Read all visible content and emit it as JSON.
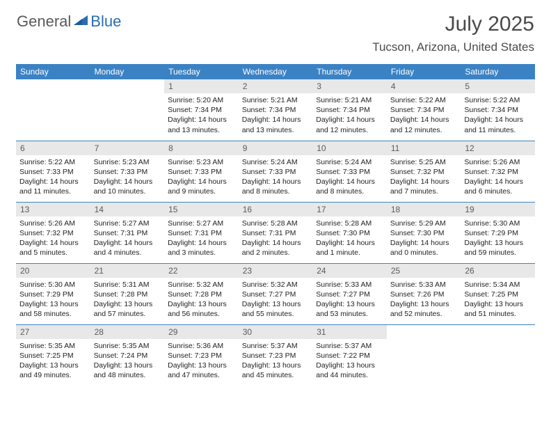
{
  "logo": {
    "general": "General",
    "blue": "Blue"
  },
  "title": "July 2025",
  "location": "Tucson, Arizona, United States",
  "theme": {
    "header_bg": "#3b82c4",
    "header_text": "#ffffff",
    "daynum_bg": "#e8e8e8",
    "daynum_text": "#5a5a5a",
    "border_color": "#3b82c4",
    "body_text": "#222222",
    "title_color": "#4a4a4a"
  },
  "day_headers": [
    "Sunday",
    "Monday",
    "Tuesday",
    "Wednesday",
    "Thursday",
    "Friday",
    "Saturday"
  ],
  "weeks": [
    [
      null,
      null,
      {
        "n": "1",
        "sr": "5:20 AM",
        "ss": "7:34 PM",
        "dl": "14 hours and 13 minutes."
      },
      {
        "n": "2",
        "sr": "5:21 AM",
        "ss": "7:34 PM",
        "dl": "14 hours and 13 minutes."
      },
      {
        "n": "3",
        "sr": "5:21 AM",
        "ss": "7:34 PM",
        "dl": "14 hours and 12 minutes."
      },
      {
        "n": "4",
        "sr": "5:22 AM",
        "ss": "7:34 PM",
        "dl": "14 hours and 12 minutes."
      },
      {
        "n": "5",
        "sr": "5:22 AM",
        "ss": "7:34 PM",
        "dl": "14 hours and 11 minutes."
      }
    ],
    [
      {
        "n": "6",
        "sr": "5:22 AM",
        "ss": "7:33 PM",
        "dl": "14 hours and 11 minutes."
      },
      {
        "n": "7",
        "sr": "5:23 AM",
        "ss": "7:33 PM",
        "dl": "14 hours and 10 minutes."
      },
      {
        "n": "8",
        "sr": "5:23 AM",
        "ss": "7:33 PM",
        "dl": "14 hours and 9 minutes."
      },
      {
        "n": "9",
        "sr": "5:24 AM",
        "ss": "7:33 PM",
        "dl": "14 hours and 8 minutes."
      },
      {
        "n": "10",
        "sr": "5:24 AM",
        "ss": "7:33 PM",
        "dl": "14 hours and 8 minutes."
      },
      {
        "n": "11",
        "sr": "5:25 AM",
        "ss": "7:32 PM",
        "dl": "14 hours and 7 minutes."
      },
      {
        "n": "12",
        "sr": "5:26 AM",
        "ss": "7:32 PM",
        "dl": "14 hours and 6 minutes."
      }
    ],
    [
      {
        "n": "13",
        "sr": "5:26 AM",
        "ss": "7:32 PM",
        "dl": "14 hours and 5 minutes."
      },
      {
        "n": "14",
        "sr": "5:27 AM",
        "ss": "7:31 PM",
        "dl": "14 hours and 4 minutes."
      },
      {
        "n": "15",
        "sr": "5:27 AM",
        "ss": "7:31 PM",
        "dl": "14 hours and 3 minutes."
      },
      {
        "n": "16",
        "sr": "5:28 AM",
        "ss": "7:31 PM",
        "dl": "14 hours and 2 minutes."
      },
      {
        "n": "17",
        "sr": "5:28 AM",
        "ss": "7:30 PM",
        "dl": "14 hours and 1 minute."
      },
      {
        "n": "18",
        "sr": "5:29 AM",
        "ss": "7:30 PM",
        "dl": "14 hours and 0 minutes."
      },
      {
        "n": "19",
        "sr": "5:30 AM",
        "ss": "7:29 PM",
        "dl": "13 hours and 59 minutes."
      }
    ],
    [
      {
        "n": "20",
        "sr": "5:30 AM",
        "ss": "7:29 PM",
        "dl": "13 hours and 58 minutes."
      },
      {
        "n": "21",
        "sr": "5:31 AM",
        "ss": "7:28 PM",
        "dl": "13 hours and 57 minutes."
      },
      {
        "n": "22",
        "sr": "5:32 AM",
        "ss": "7:28 PM",
        "dl": "13 hours and 56 minutes."
      },
      {
        "n": "23",
        "sr": "5:32 AM",
        "ss": "7:27 PM",
        "dl": "13 hours and 55 minutes."
      },
      {
        "n": "24",
        "sr": "5:33 AM",
        "ss": "7:27 PM",
        "dl": "13 hours and 53 minutes."
      },
      {
        "n": "25",
        "sr": "5:33 AM",
        "ss": "7:26 PM",
        "dl": "13 hours and 52 minutes."
      },
      {
        "n": "26",
        "sr": "5:34 AM",
        "ss": "7:25 PM",
        "dl": "13 hours and 51 minutes."
      }
    ],
    [
      {
        "n": "27",
        "sr": "5:35 AM",
        "ss": "7:25 PM",
        "dl": "13 hours and 49 minutes."
      },
      {
        "n": "28",
        "sr": "5:35 AM",
        "ss": "7:24 PM",
        "dl": "13 hours and 48 minutes."
      },
      {
        "n": "29",
        "sr": "5:36 AM",
        "ss": "7:23 PM",
        "dl": "13 hours and 47 minutes."
      },
      {
        "n": "30",
        "sr": "5:37 AM",
        "ss": "7:23 PM",
        "dl": "13 hours and 45 minutes."
      },
      {
        "n": "31",
        "sr": "5:37 AM",
        "ss": "7:22 PM",
        "dl": "13 hours and 44 minutes."
      },
      null,
      null
    ]
  ],
  "labels": {
    "sunrise": "Sunrise:",
    "sunset": "Sunset:",
    "daylight": "Daylight:"
  }
}
